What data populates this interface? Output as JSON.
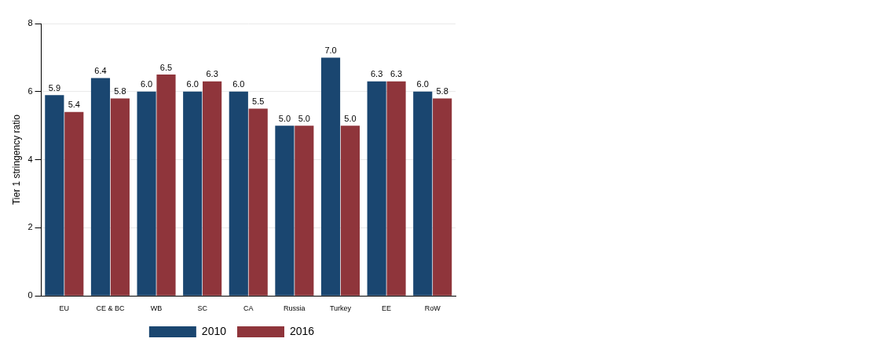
{
  "chart_data": {
    "type": "bar",
    "y_label": "Tier 1 stringency ratio",
    "categories": [
      "EU",
      "CE & BC",
      "WB",
      "SC",
      "CA",
      "Russia",
      "Turkey",
      "EE",
      "RoW"
    ],
    "series": [
      {
        "name": "2010",
        "color": "#1a4670",
        "values": [
          5.9,
          6.4,
          6.0,
          6.0,
          6.0,
          5.0,
          7.0,
          6.3,
          6.0
        ],
        "value_labels": [
          "5.9",
          "6.4",
          "6.0",
          "6.0",
          "6.0",
          "5.0",
          "7.0",
          "6.3",
          "6.0"
        ]
      },
      {
        "name": "2016",
        "color": "#8f353b",
        "values": [
          5.4,
          5.8,
          6.5,
          6.3,
          5.5,
          5.0,
          5.0,
          6.3,
          5.8
        ],
        "value_labels": [
          "5.4",
          "5.8",
          "6.5",
          "6.3",
          "5.5",
          "5.0",
          "5.0",
          "6.3",
          "5.8"
        ]
      }
    ],
    "ylim": [
      0,
      8
    ],
    "yticks": [
      0,
      2,
      4,
      6,
      8
    ],
    "grid": true,
    "legend": "bottom",
    "data_labels": true
  }
}
